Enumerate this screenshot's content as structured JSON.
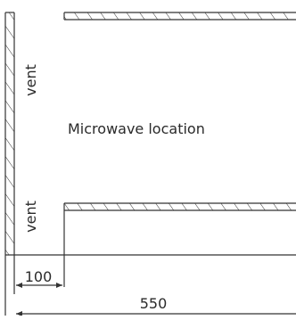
{
  "labels": {
    "vent_top": "vent",
    "vent_bottom": "vent",
    "location": "Microwave location"
  },
  "dimensions": {
    "small": "100",
    "large": "550"
  },
  "colors": {
    "line": "#333333",
    "text": "#2a2a2a",
    "background": "#ffffff"
  }
}
